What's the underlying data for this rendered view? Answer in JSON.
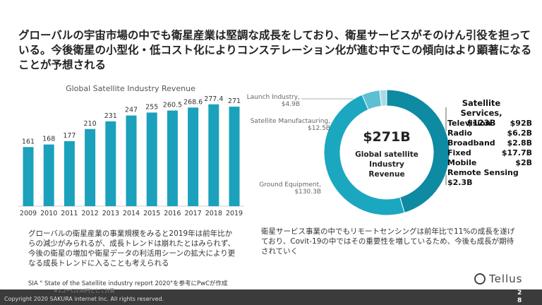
{
  "slide": {
    "headline": "グローバルの宇宙市場の中でも衛星産業は堅調な成長をしており、衛星サービスがそのけん引役を担っている。今後衛星の小型化・低コスト化によりコンステレーション化が進む中でこの傾向はより顕著になることが予想される",
    "left_text": "グローバルの衛星産業の事業規模をみると2019年は前年比からの減少がみられるが、成長トレンドは崩れたとはみられず、今後の衛星の増加や衛星データの利活用シーンの拡大により更なる成長トレンドに入ることも考えられる",
    "right_text": "衛星サービス事業の中でもリモートセンシングは前年比で11%の成長を遂げており、Covit-19の中ではその重要性を増しているため、今後も成長が期待されていく",
    "source": "SIA \" State of the Satellite industry report 2020\"を参考にPwCが作成",
    "note": "※1ユーロ130円として計算",
    "footer": "Copyright 2020 SAKURA internet Inc. All rights reserved.",
    "page_number": "28",
    "logo": "Tellus",
    "services_breakdown": [
      {
        "name": "Television",
        "value": "$92B"
      },
      {
        "name": "Radio",
        "value": "$6.2B"
      },
      {
        "name": "Broadband",
        "value": "$2.8B"
      },
      {
        "name": "Fixed",
        "value": "$17.7B"
      },
      {
        "name": "Mobile",
        "value": "$2B"
      },
      {
        "name": "Remote Sensing",
        "value": "$2.3B"
      }
    ]
  },
  "chart_data": [
    {
      "type": "bar",
      "title": "Global Satellite Industry Revenue",
      "categories": [
        "2009",
        "2010",
        "2011",
        "2012",
        "2013",
        "2014",
        "2015",
        "2016",
        "2017",
        "2018",
        "2019"
      ],
      "values": [
        161,
        168,
        177,
        210,
        231,
        247,
        255,
        260.5,
        268.6,
        277.4,
        271
      ],
      "color": "#1ba1bb"
    },
    {
      "type": "donut",
      "center_label": "$271B",
      "center_subtitle": "Global satellite Industry Revenue",
      "categories": [
        "Satellite Services,",
        "Ground Equipment,",
        "Satellite Manufactauring,",
        "Launch Industry,"
      ],
      "values": [
        123,
        130.3,
        12.5,
        4.9
      ],
      "value_labels": [
        "$123B",
        "$130.3B",
        "$12.5B",
        "$4.9B"
      ],
      "colors": [
        "#0e8aa3",
        "#1ba7c0",
        "#5dbfd2",
        "#a9dbe6"
      ]
    }
  ]
}
